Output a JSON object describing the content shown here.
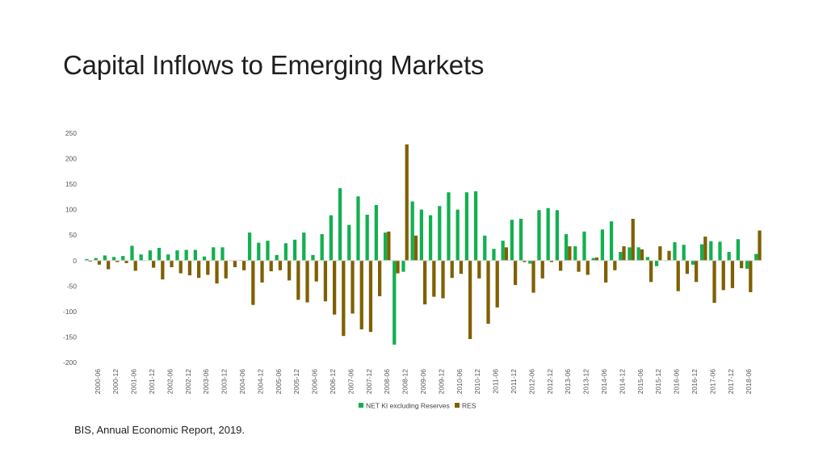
{
  "page": {
    "title": "Capital Inflows to Emerging Markets",
    "source": "BIS, Annual Economic Report, 2019."
  },
  "chart_data": {
    "type": "bar",
    "title": "",
    "xlabel": "",
    "ylabel": "",
    "ylim": [
      -200,
      250
    ],
    "yticks": [
      250,
      200,
      150,
      100,
      50,
      0,
      -50,
      -100,
      -150,
      -200
    ],
    "grid": false,
    "legend_position": "bottom",
    "x_tick_labels": [
      "2000-06",
      "2000-12",
      "2001-06",
      "2001-12",
      "2002-06",
      "2002-12",
      "2003-06",
      "2003-12",
      "2004-06",
      "2004-12",
      "2005-06",
      "2005-12",
      "2006-06",
      "2006-12",
      "2007-06",
      "2007-12",
      "2008-06",
      "2008-12",
      "2009-06",
      "2009-12",
      "2010-06",
      "2010-12",
      "2011-06",
      "2011-12",
      "2012-06",
      "2012-12",
      "2013-06",
      "2013-12",
      "2014-06",
      "2014-12",
      "2015-06",
      "2015-12",
      "2016-06",
      "2016-12",
      "2017-06",
      "2017-12",
      "2018-06"
    ],
    "categories": [
      "2000-03",
      "2000-06",
      "2000-09",
      "2000-12",
      "2001-03",
      "2001-06",
      "2001-09",
      "2001-12",
      "2002-03",
      "2002-06",
      "2002-09",
      "2002-12",
      "2003-03",
      "2003-06",
      "2003-09",
      "2003-12",
      "2004-03",
      "2004-06",
      "2004-09",
      "2004-12",
      "2005-03",
      "2005-06",
      "2005-09",
      "2005-12",
      "2006-03",
      "2006-06",
      "2006-09",
      "2006-12",
      "2007-03",
      "2007-06",
      "2007-09",
      "2007-12",
      "2008-03",
      "2008-06",
      "2008-09",
      "2008-12",
      "2009-03",
      "2009-06",
      "2009-09",
      "2009-12",
      "2010-03",
      "2010-06",
      "2010-09",
      "2010-12",
      "2011-03",
      "2011-06",
      "2011-09",
      "2011-12",
      "2012-03",
      "2012-06",
      "2012-09",
      "2012-12",
      "2013-03",
      "2013-06",
      "2013-09",
      "2013-12",
      "2014-03",
      "2014-06",
      "2014-09",
      "2014-12",
      "2015-03",
      "2015-06",
      "2015-09",
      "2015-12",
      "2016-03",
      "2016-06",
      "2016-09",
      "2016-12",
      "2017-03",
      "2017-06",
      "2017-09",
      "2017-12",
      "2018-03",
      "2018-06",
      "2018-09"
    ],
    "series": [
      {
        "name": "NET KI excluding Reserves",
        "color": "#12b050",
        "values": [
          3,
          5,
          10,
          7,
          9,
          29,
          12,
          20,
          25,
          12,
          20,
          21,
          21,
          8,
          26,
          26,
          0,
          1,
          55,
          35,
          39,
          11,
          34,
          41,
          55,
          11,
          52,
          89,
          142,
          70,
          126,
          90,
          109,
          55,
          -165,
          -22,
          116,
          100,
          89,
          107,
          134,
          100,
          134,
          136,
          49,
          23,
          39,
          80,
          82,
          -6,
          99,
          103,
          99,
          52,
          28,
          57,
          5,
          61,
          77,
          17,
          26,
          26,
          7,
          -11,
          0,
          36,
          31,
          -8,
          32,
          38,
          37,
          17,
          42,
          -16,
          13
        ]
      },
      {
        "name": "RES",
        "color": "#7f6000",
        "values": [
          -2,
          -8,
          -17,
          -3,
          -5,
          -20,
          0,
          -14,
          -37,
          -13,
          -25,
          -29,
          -34,
          -28,
          -45,
          -35,
          -13,
          -19,
          -87,
          -43,
          -21,
          -19,
          -39,
          -77,
          -82,
          -41,
          -80,
          -106,
          -148,
          -104,
          -135,
          -140,
          -70,
          57,
          -25,
          228,
          49,
          -86,
          -71,
          -74,
          -34,
          -26,
          -154,
          -35,
          -124,
          -92,
          26,
          -48,
          -3,
          -63,
          -35,
          -3,
          -20,
          28,
          -22,
          -28,
          6,
          -43,
          -19,
          28,
          82,
          22,
          -42,
          28,
          19,
          -60,
          -26,
          -42,
          47,
          -83,
          -58,
          -54,
          -15,
          -62,
          59
        ]
      }
    ]
  }
}
